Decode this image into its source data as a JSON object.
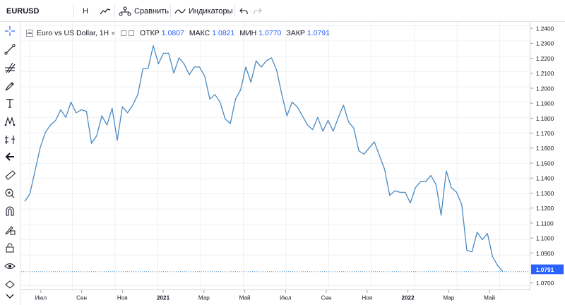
{
  "toolbar": {
    "symbol": "EURUSD",
    "interval": "H",
    "compare_label": "Сравнить",
    "indicators_label": "Индикаторы"
  },
  "legend": {
    "title": "Euro vs US Dollar, 1H",
    "open_label": "ОТКР",
    "open_value": "1.0807",
    "high_label": "МАКС",
    "high_value": "1.0821",
    "low_label": "МИН",
    "low_value": "1.0770",
    "close_label": "ЗАКР",
    "close_value": "1.0791"
  },
  "sidebar": {
    "tools": [
      "crosshair-icon",
      "trend-line-icon",
      "fib-tool-icon",
      "brush-icon",
      "text-icon",
      "pattern-icon",
      "prediction-icon",
      "back-arrow-icon",
      "ruler-icon",
      "zoom-in-icon",
      "magnet-icon",
      "lock-drawing-icon",
      "lock-icon",
      "eye-icon",
      "trash-icon",
      "chevron-down-icon"
    ]
  },
  "colors": {
    "line": "#4a8ac2",
    "last_price_bg": "#2962ff",
    "grid": "#eef0f3"
  },
  "chart_data": {
    "type": "line",
    "series": [
      {
        "values": [
          1.125,
          1.13,
          1.145,
          1.16,
          1.17,
          1.175,
          1.178,
          1.185,
          1.18,
          1.19,
          1.183,
          1.185,
          1.184,
          1.163,
          1.168,
          1.181,
          1.175,
          1.186,
          1.165,
          1.187,
          1.183,
          1.188,
          1.195,
          1.212,
          1.212,
          1.227,
          1.215,
          1.222,
          1.222,
          1.209,
          1.219,
          1.215,
          1.208,
          1.213,
          1.213,
          1.207,
          1.192,
          1.195,
          1.19,
          1.179,
          1.176,
          1.192,
          1.198,
          1.213,
          1.203,
          1.217,
          1.213,
          1.217,
          1.219,
          1.211,
          1.195,
          1.181,
          1.19,
          1.187,
          1.181,
          1.175,
          1.172,
          1.18,
          1.171,
          1.178,
          1.171,
          1.18,
          1.188,
          1.177,
          1.173,
          1.158,
          1.156,
          1.16,
          1.164,
          1.155,
          1.146,
          1.129,
          1.132,
          1.131,
          1.131,
          1.124,
          1.134,
          1.138,
          1.138,
          1.142,
          1.136,
          1.116,
          1.145,
          1.134,
          1.131,
          1.123,
          1.093,
          1.092,
          1.105,
          1.1,
          1.104,
          1.089,
          1.083,
          1.0791
        ]
      }
    ],
    "last_value": "1.0791",
    "y_ticks": [
      "1.2400",
      "1.2300",
      "1.2200",
      "1.2100",
      "1.2000",
      "1.1900",
      "1.1800",
      "1.1700",
      "1.1600",
      "1.1500",
      "1.1400",
      "1.1300",
      "1.1200",
      "1.1100",
      "1.1000",
      "1.0900",
      "1.0700"
    ],
    "ylim": [
      1.0665,
      1.2425
    ],
    "x_ticks": [
      "Июл",
      "Сен",
      "Ноя",
      "2021",
      "Мар",
      "Май",
      "Июл",
      "Сен",
      "Ноя",
      "2022",
      "Мар",
      "Май"
    ],
    "grid": true
  }
}
